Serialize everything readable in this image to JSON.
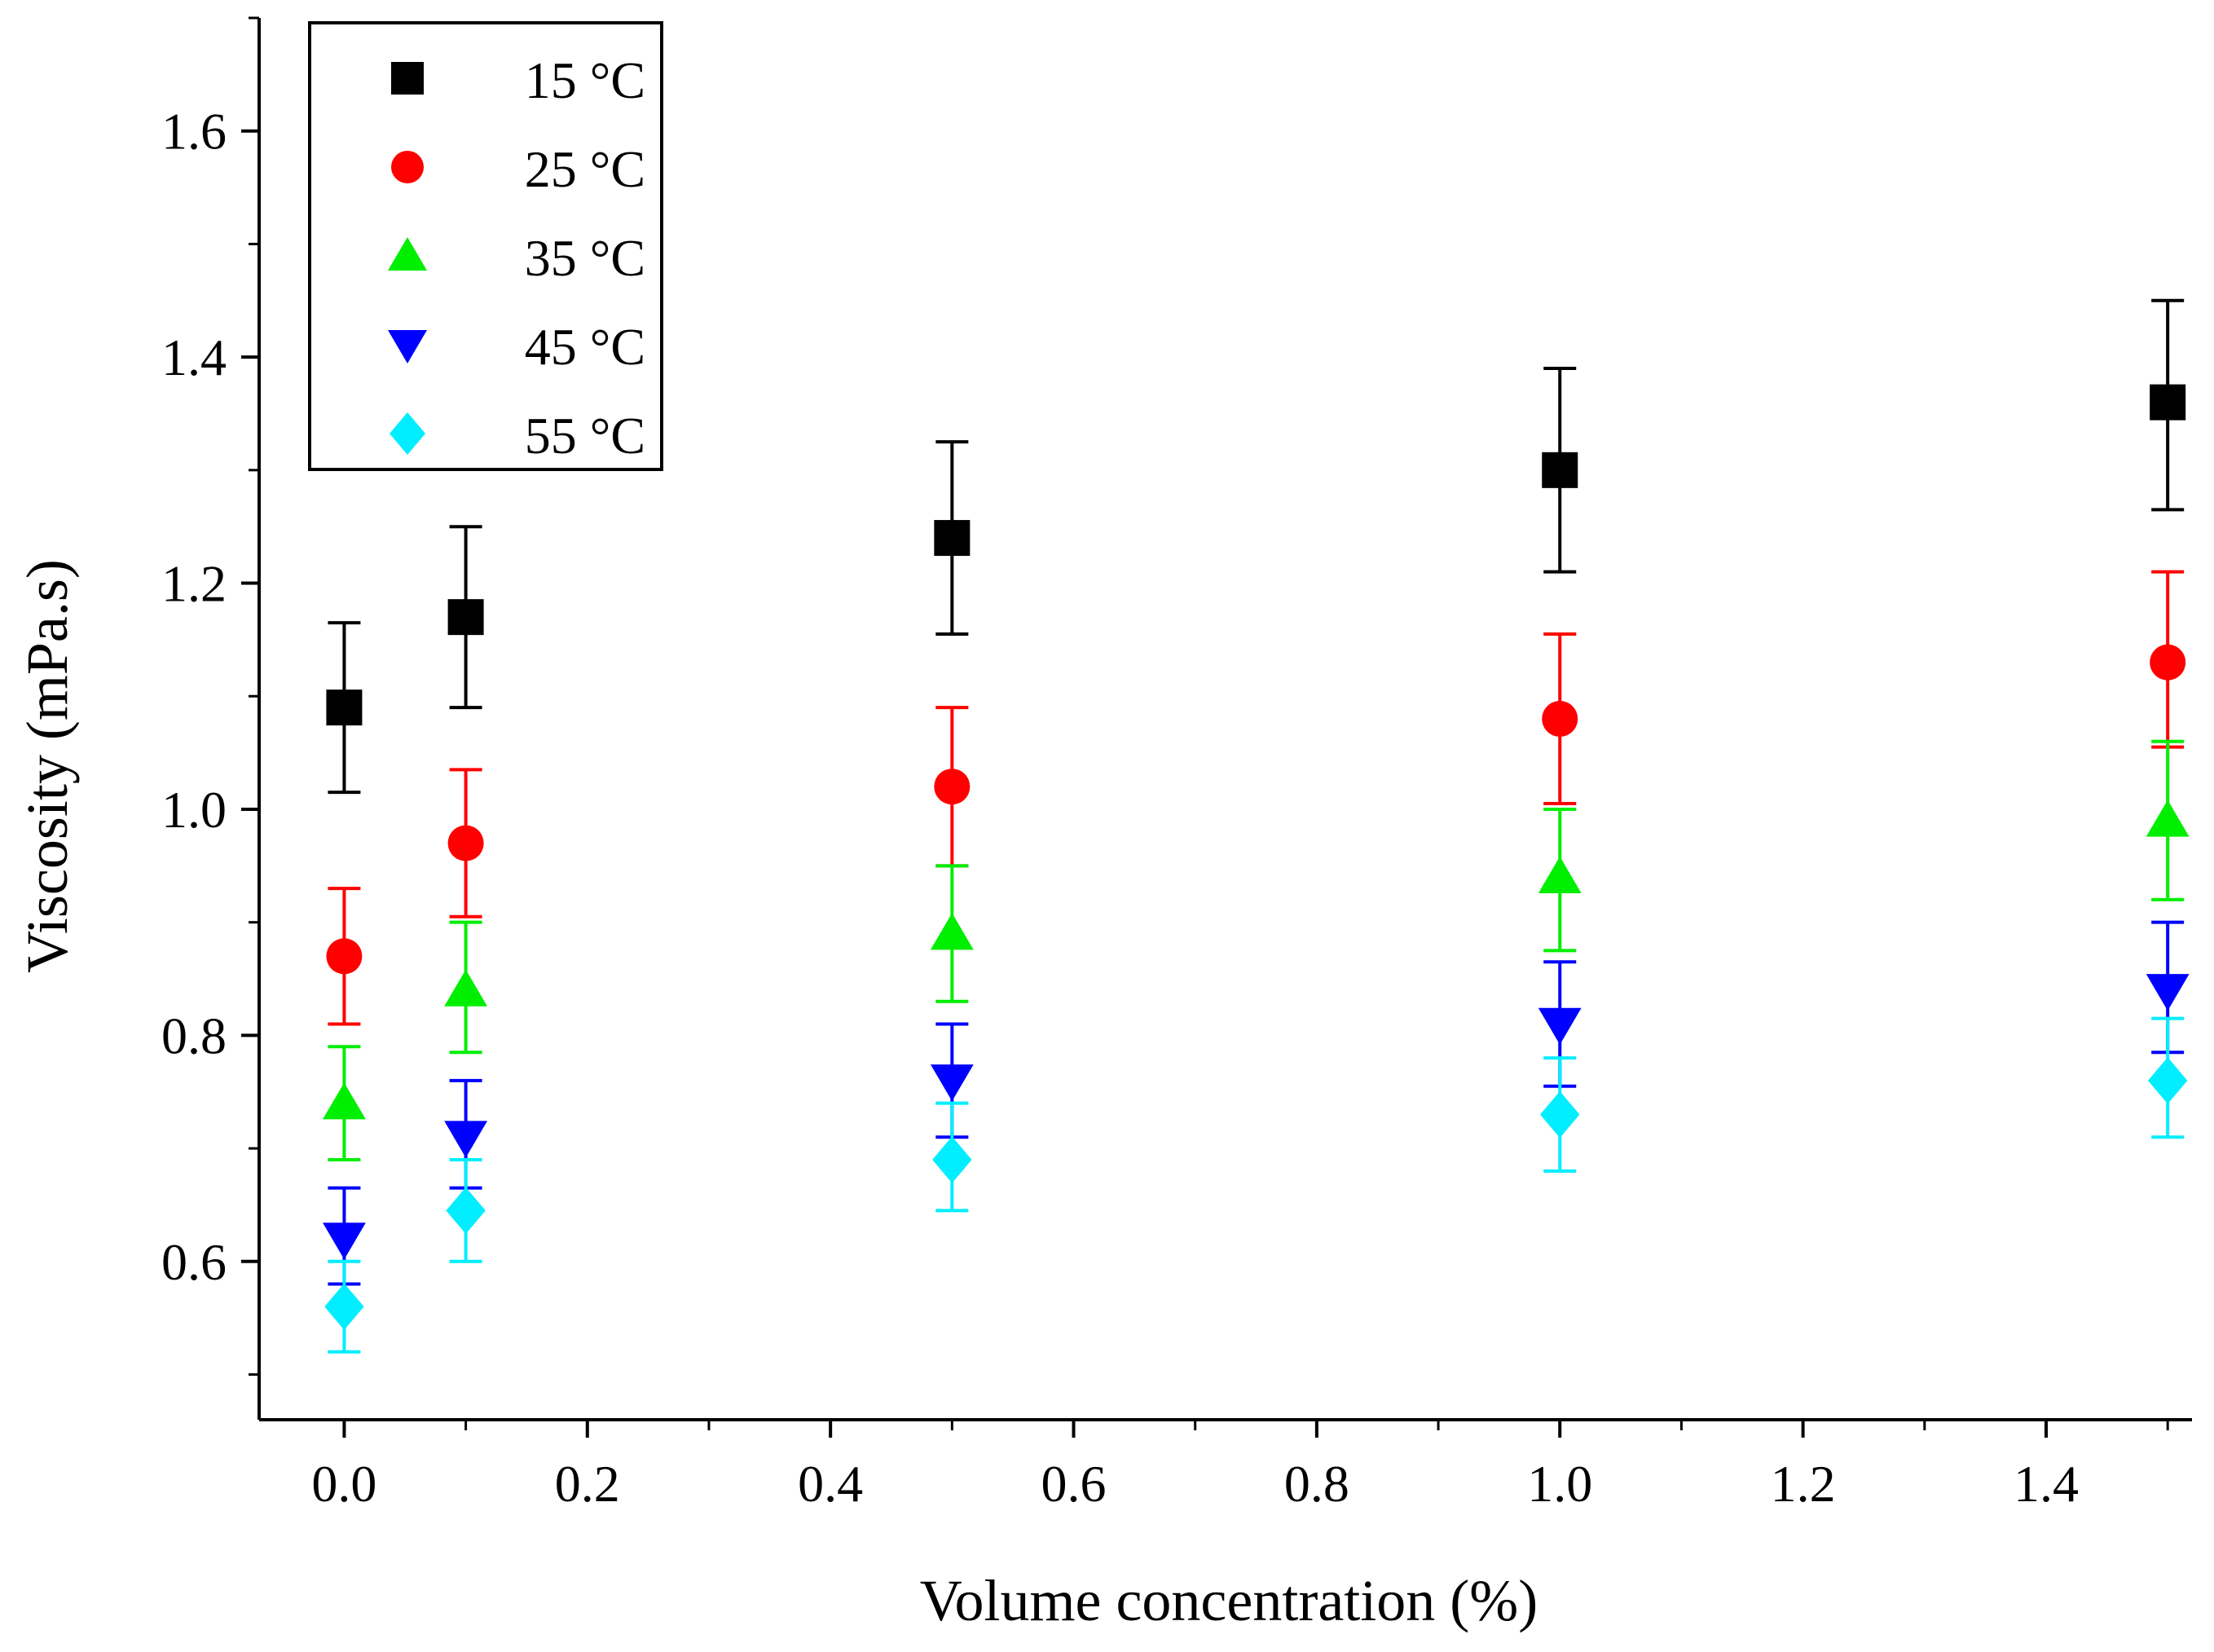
{
  "chart_data": {
    "type": "scatter",
    "title": "",
    "xlabel": "Volume concentration (%)",
    "ylabel": "Viscosity (mPa.s)",
    "xlim": [
      -0.07,
      1.52
    ],
    "ylim": [
      0.46,
      1.7
    ],
    "x_ticks": [
      0.0,
      0.2,
      0.4,
      0.6,
      0.8,
      1.0,
      1.2,
      1.4
    ],
    "x_tick_labels": [
      "0.0",
      "0.2",
      "0.4",
      "0.6",
      "0.8",
      "1.0",
      "1.2",
      "1.4"
    ],
    "y_ticks": [
      0.6,
      0.8,
      1.0,
      1.2,
      1.4,
      1.6
    ],
    "y_tick_labels": [
      "0.6",
      "0.8",
      "1.0",
      "1.2",
      "1.4",
      "1.6"
    ],
    "grid": false,
    "legend_position": "top-left",
    "x": [
      0.0,
      0.1,
      0.5,
      1.0,
      1.5
    ],
    "series": [
      {
        "name": "15 °C",
        "marker": "square",
        "color": "#000000",
        "values": [
          1.09,
          1.17,
          1.24,
          1.3,
          1.36
        ],
        "err_low": [
          1.015,
          1.09,
          1.155,
          1.21,
          1.265
        ],
        "err_high": [
          1.165,
          1.25,
          1.325,
          1.39,
          1.45
        ]
      },
      {
        "name": "25 °C",
        "marker": "circle",
        "color": "#ff0000",
        "values": [
          0.87,
          0.97,
          1.02,
          1.08,
          1.13
        ],
        "err_low": [
          0.81,
          0.905,
          0.95,
          1.005,
          1.055
        ],
        "err_high": [
          0.93,
          1.035,
          1.09,
          1.155,
          1.21
        ]
      },
      {
        "name": "35 °C",
        "marker": "triangle-up",
        "color": "#00ee00",
        "values": [
          0.74,
          0.84,
          0.89,
          0.94,
          0.99
        ],
        "err_low": [
          0.69,
          0.785,
          0.83,
          0.875,
          0.92
        ],
        "err_high": [
          0.79,
          0.9,
          0.95,
          1.0,
          1.06
        ]
      },
      {
        "name": "45 °C",
        "marker": "triangle-down",
        "color": "#0000ff",
        "values": [
          0.62,
          0.71,
          0.76,
          0.81,
          0.84
        ],
        "err_low": [
          0.58,
          0.665,
          0.71,
          0.755,
          0.785
        ],
        "err_high": [
          0.665,
          0.76,
          0.81,
          0.865,
          0.9
        ]
      },
      {
        "name": "55 °C",
        "marker": "diamond",
        "color": "#00eeff",
        "values": [
          0.56,
          0.645,
          0.69,
          0.73,
          0.76
        ],
        "err_low": [
          0.52,
          0.6,
          0.645,
          0.68,
          0.71
        ],
        "err_high": [
          0.6,
          0.69,
          0.74,
          0.78,
          0.815
        ]
      }
    ]
  }
}
